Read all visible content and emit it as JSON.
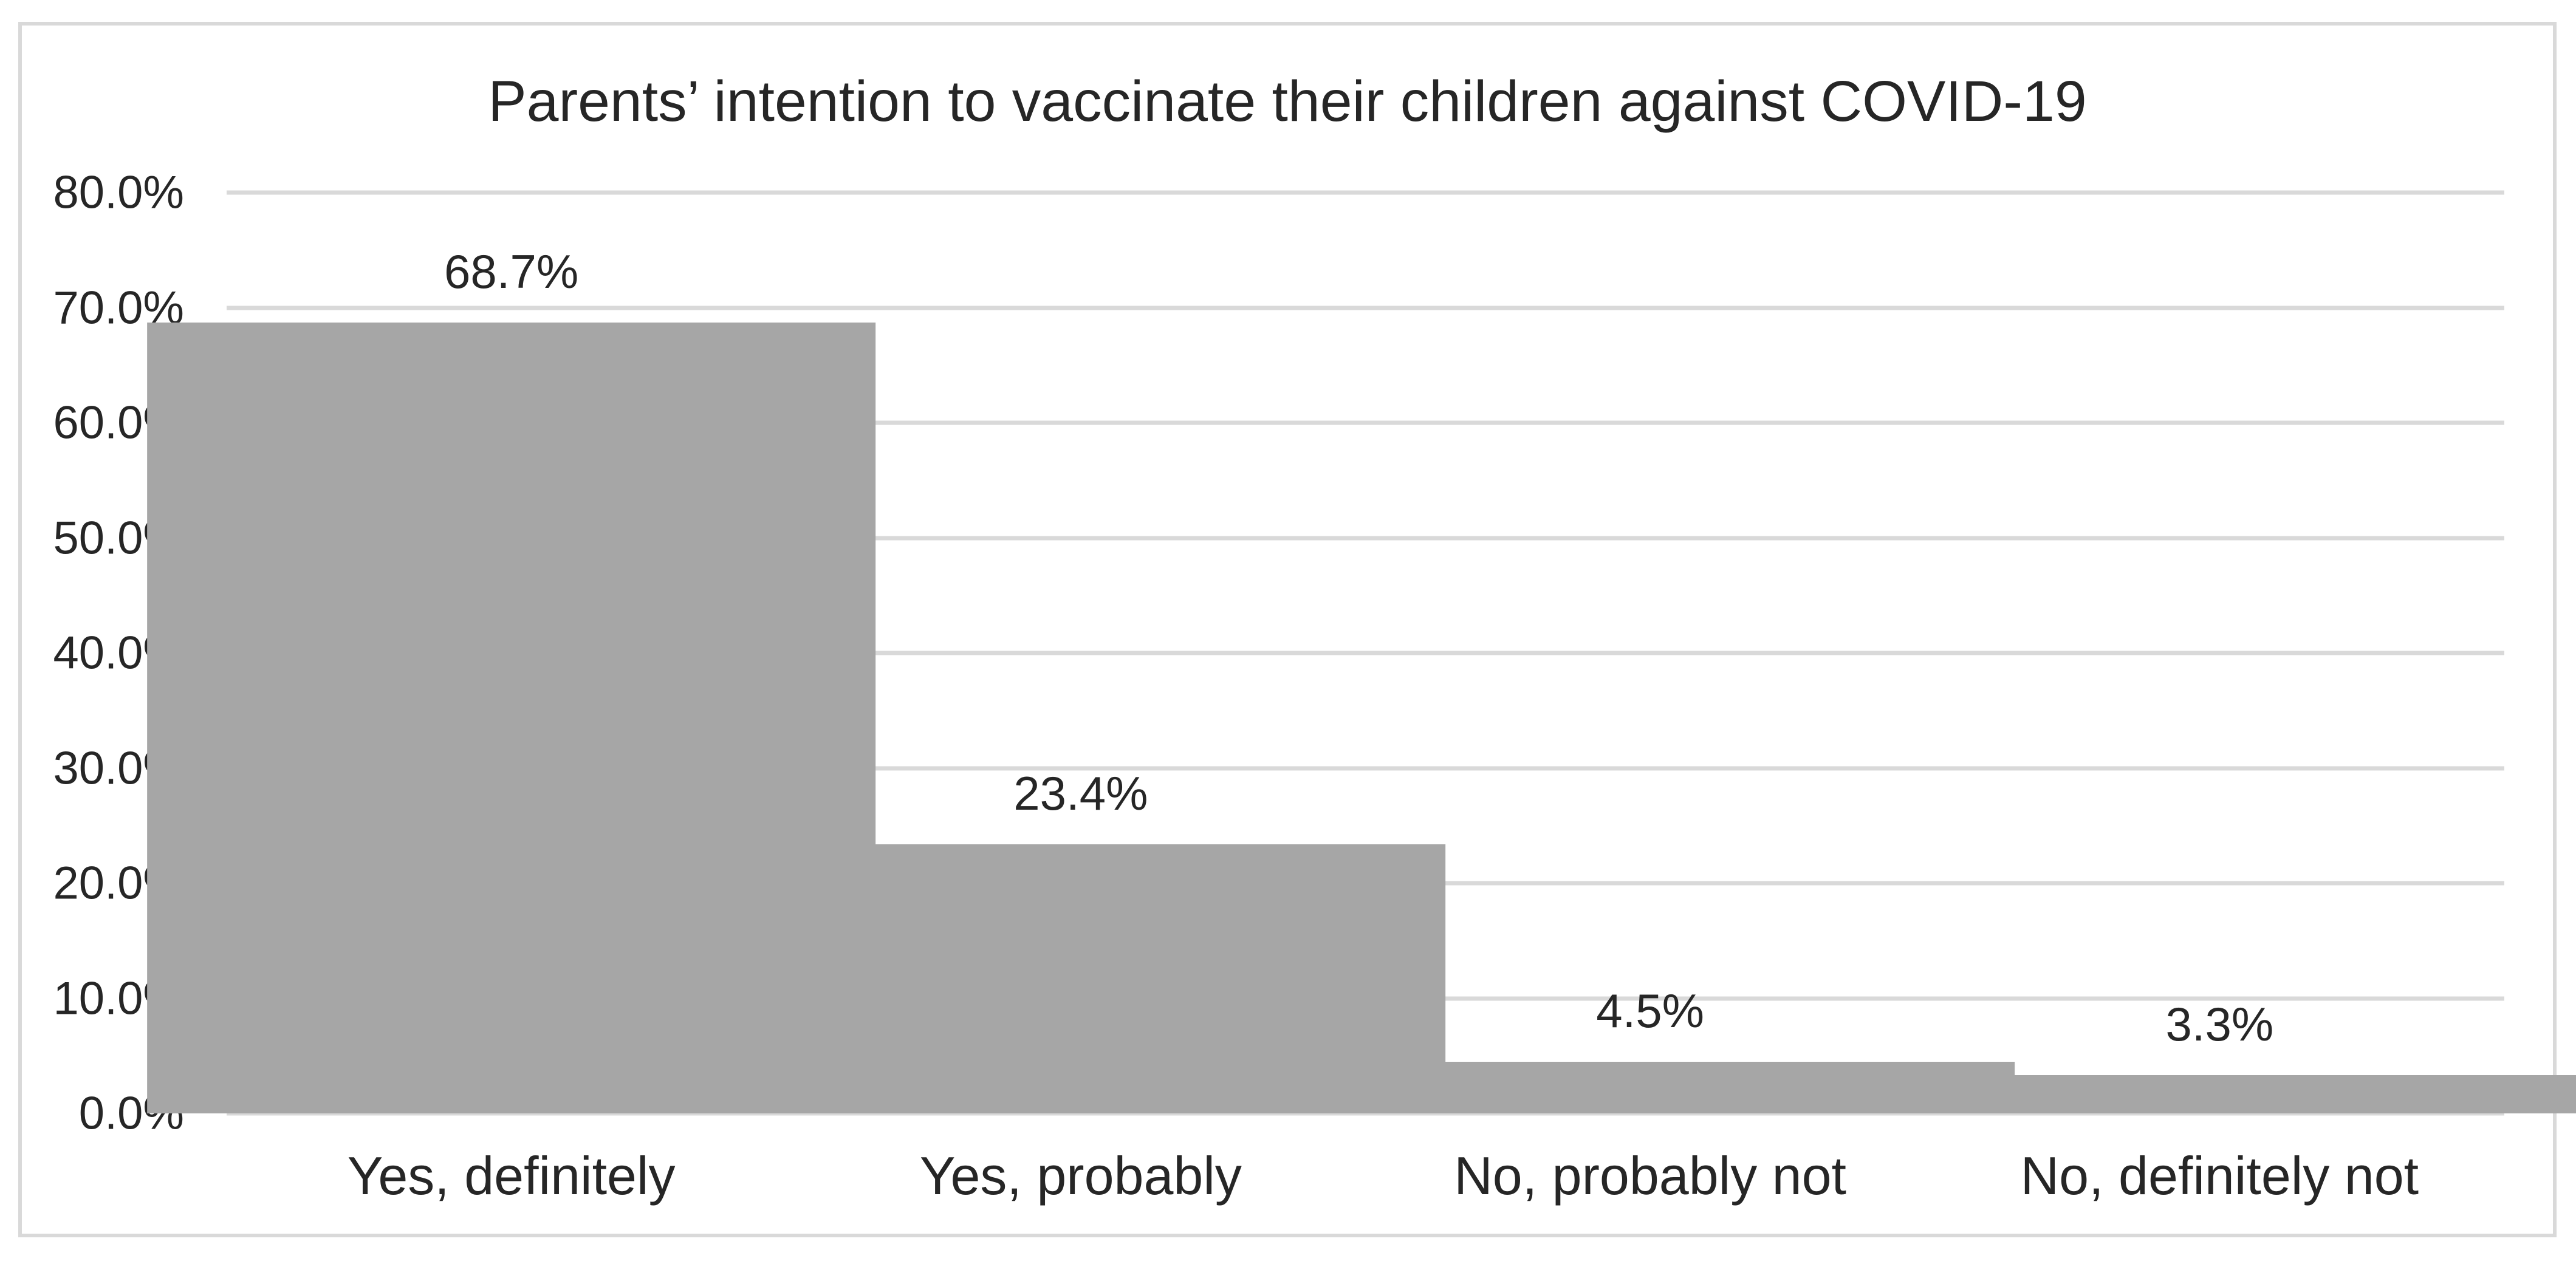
{
  "chart": {
    "title": "Parents’ intention to vaccinate their children against COVID-19"
  },
  "chart_data": {
    "type": "bar",
    "title": "Parents’ intention to vaccinate their children against COVID-19",
    "categories": [
      "Yes, definitely",
      "Yes, probably",
      "No, probably not",
      "No, definitely not"
    ],
    "values": [
      68.7,
      23.4,
      4.5,
      3.3
    ],
    "data_labels": [
      "68.7%",
      "23.4%",
      "4.5%",
      "3.3%"
    ],
    "y_tick_labels": [
      "80.0%",
      "70.0%",
      "60.0%",
      "50.0%",
      "40.0%",
      "30.0%",
      "20.0%",
      "10.0%",
      "0.0%"
    ],
    "y_tick_values": [
      80,
      70,
      60,
      50,
      40,
      30,
      20,
      10,
      0
    ],
    "ylim": [
      0,
      80
    ],
    "xlabel": "",
    "ylabel": "",
    "grid": true,
    "legend_position": "none",
    "colors": {
      "bar_fill": "#a6a6a6",
      "gridline": "#d9d9d9",
      "frame_border": "#d9d9d9",
      "text": "#262626",
      "background": "#ffffff"
    }
  }
}
